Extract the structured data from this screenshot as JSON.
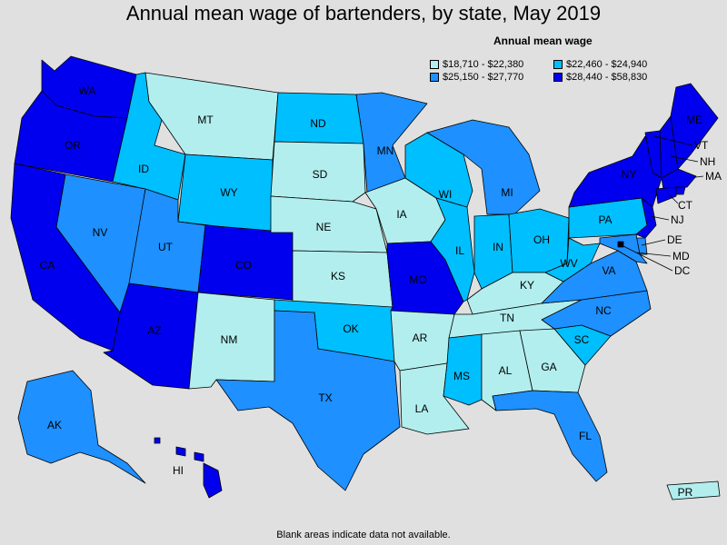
{
  "title": "Annual mean wage of bartenders, by state, May 2019",
  "legend": {
    "title": "Annual mean wage",
    "items": [
      {
        "label": "$18,710 - $22,380",
        "color": "#b2eeee"
      },
      {
        "label": "$22,460 - $24,940",
        "color": "#00bfff"
      },
      {
        "label": "$25,150 - $27,770",
        "color": "#1e90ff"
      },
      {
        "label": "$28,440 - $58,830",
        "color": "#0000ee"
      }
    ]
  },
  "footnote": "Blank areas indicate data not available.",
  "states": [
    {
      "abbr": "WA",
      "tier": 3
    },
    {
      "abbr": "OR",
      "tier": 3
    },
    {
      "abbr": "CA",
      "tier": 3
    },
    {
      "abbr": "NV",
      "tier": 2
    },
    {
      "abbr": "ID",
      "tier": 1
    },
    {
      "abbr": "MT",
      "tier": 0
    },
    {
      "abbr": "WY",
      "tier": 1
    },
    {
      "abbr": "UT",
      "tier": 2
    },
    {
      "abbr": "AZ",
      "tier": 3
    },
    {
      "abbr": "CO",
      "tier": 3
    },
    {
      "abbr": "NM",
      "tier": 0
    },
    {
      "abbr": "ND",
      "tier": 1
    },
    {
      "abbr": "SD",
      "tier": 0
    },
    {
      "abbr": "NE",
      "tier": 0
    },
    {
      "abbr": "KS",
      "tier": 0
    },
    {
      "abbr": "OK",
      "tier": 1
    },
    {
      "abbr": "TX",
      "tier": 2
    },
    {
      "abbr": "MN",
      "tier": 2
    },
    {
      "abbr": "IA",
      "tier": 0
    },
    {
      "abbr": "MO",
      "tier": 3
    },
    {
      "abbr": "AR",
      "tier": 0
    },
    {
      "abbr": "LA",
      "tier": 0
    },
    {
      "abbr": "WI",
      "tier": 1
    },
    {
      "abbr": "IL",
      "tier": 1
    },
    {
      "abbr": "MI",
      "tier": 2
    },
    {
      "abbr": "IN",
      "tier": 1
    },
    {
      "abbr": "OH",
      "tier": 1
    },
    {
      "abbr": "KY",
      "tier": 0
    },
    {
      "abbr": "TN",
      "tier": 0
    },
    {
      "abbr": "MS",
      "tier": 1
    },
    {
      "abbr": "AL",
      "tier": 0
    },
    {
      "abbr": "GA",
      "tier": 0
    },
    {
      "abbr": "FL",
      "tier": 2
    },
    {
      "abbr": "SC",
      "tier": 1
    },
    {
      "abbr": "NC",
      "tier": 2
    },
    {
      "abbr": "VA",
      "tier": 2
    },
    {
      "abbr": "WV",
      "tier": 1
    },
    {
      "abbr": "PA",
      "tier": 1
    },
    {
      "abbr": "NY",
      "tier": 3
    },
    {
      "abbr": "VT",
      "tier": 3
    },
    {
      "abbr": "NH",
      "tier": 3
    },
    {
      "abbr": "ME",
      "tier": 3
    },
    {
      "abbr": "MA",
      "tier": 3
    },
    {
      "abbr": "CT",
      "tier": 3
    },
    {
      "abbr": "NJ",
      "tier": 3
    },
    {
      "abbr": "DE",
      "tier": 2
    },
    {
      "abbr": "MD",
      "tier": 2
    },
    {
      "abbr": "DC",
      "tier": 3
    },
    {
      "abbr": "AK",
      "tier": 2
    },
    {
      "abbr": "HI",
      "tier": 3
    },
    {
      "abbr": "PR",
      "tier": 0
    },
    {
      "abbr": "RI",
      "tier": 3
    }
  ]
}
